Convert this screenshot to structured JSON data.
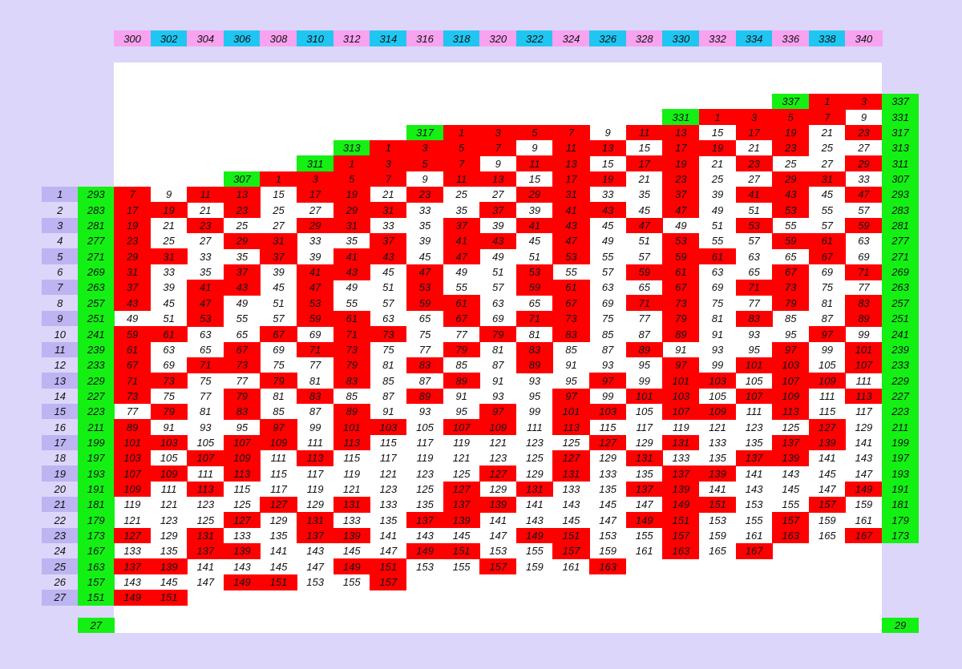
{
  "header": [
    300,
    302,
    304,
    306,
    308,
    310,
    312,
    314,
    316,
    318,
    320,
    322,
    324,
    326,
    328,
    330,
    332,
    334,
    336,
    338,
    340
  ],
  "header_colors": [
    "#f7a3ef",
    "#20c6f2"
  ],
  "label_colors": [
    "#bdb4f2",
    "#dcd6fb"
  ],
  "marker_color": "#14f014",
  "highlight_color": "#ff0000",
  "highlighted": [
    1,
    3,
    5,
    7,
    11,
    13,
    17,
    19,
    23,
    29,
    31,
    37,
    41,
    43,
    47,
    53,
    59,
    61,
    67,
    71,
    73,
    79,
    83,
    89,
    97,
    101,
    103,
    107,
    109,
    113,
    127,
    131,
    137,
    139,
    149,
    151,
    157,
    163,
    167
  ],
  "top_rows": [
    {
      "marker": 337,
      "cells": [
        null,
        null,
        null,
        null,
        null,
        null,
        null,
        null,
        null,
        null,
        null,
        null,
        null,
        null,
        null,
        null,
        null,
        null,
        null,
        1,
        3
      ],
      "right": 337
    },
    {
      "marker": 331,
      "cells": [
        null,
        null,
        null,
        null,
        null,
        null,
        null,
        null,
        null,
        null,
        null,
        null,
        null,
        null,
        null,
        null,
        1,
        3,
        5,
        7,
        9
      ],
      "right": 331
    },
    {
      "marker": 317,
      "cells": [
        null,
        null,
        null,
        null,
        null,
        null,
        null,
        null,
        null,
        1,
        3,
        5,
        7,
        9,
        11,
        13,
        15,
        17,
        19,
        21,
        23
      ],
      "right": 317
    },
    {
      "marker": 313,
      "cells": [
        null,
        null,
        null,
        null,
        null,
        null,
        null,
        1,
        3,
        5,
        7,
        9,
        11,
        13,
        15,
        17,
        19,
        21,
        23,
        25,
        27
      ],
      "right": 313
    },
    {
      "marker": 311,
      "cells": [
        null,
        null,
        null,
        null,
        null,
        null,
        1,
        3,
        5,
        7,
        9,
        11,
        13,
        15,
        17,
        19,
        21,
        23,
        25,
        27,
        29
      ],
      "right": 311
    },
    {
      "marker": 307,
      "cells": [
        null,
        null,
        null,
        null,
        1,
        3,
        5,
        7,
        9,
        11,
        13,
        15,
        17,
        19,
        21,
        23,
        25,
        27,
        29,
        31,
        33
      ],
      "right": 307
    }
  ],
  "rows": [
    {
      "label": 1,
      "left": 293,
      "cells": [
        7,
        9,
        11,
        13,
        15,
        17,
        19,
        21,
        23,
        25,
        27,
        29,
        31,
        33,
        35,
        37,
        39,
        41,
        43,
        45,
        47
      ],
      "right": 293
    },
    {
      "label": 2,
      "left": 283,
      "cells": [
        17,
        19,
        21,
        23,
        25,
        27,
        29,
        31,
        33,
        35,
        37,
        39,
        41,
        43,
        45,
        47,
        49,
        51,
        53,
        55,
        57
      ],
      "right": 283
    },
    {
      "label": 3,
      "left": 281,
      "cells": [
        19,
        21,
        23,
        25,
        27,
        29,
        31,
        33,
        35,
        37,
        39,
        41,
        43,
        45,
        47,
        49,
        51,
        53,
        55,
        57,
        59
      ],
      "right": 281
    },
    {
      "label": 4,
      "left": 277,
      "cells": [
        23,
        25,
        27,
        29,
        31,
        33,
        35,
        37,
        39,
        41,
        43,
        45,
        47,
        49,
        51,
        53,
        55,
        57,
        59,
        61,
        63
      ],
      "right": 277
    },
    {
      "label": 5,
      "left": 271,
      "cells": [
        29,
        31,
        33,
        35,
        37,
        39,
        41,
        43,
        45,
        47,
        49,
        51,
        53,
        55,
        57,
        59,
        61,
        63,
        65,
        67,
        69
      ],
      "right": 271
    },
    {
      "label": 6,
      "left": 269,
      "cells": [
        31,
        33,
        35,
        37,
        39,
        41,
        43,
        45,
        47,
        49,
        51,
        53,
        55,
        57,
        59,
        61,
        63,
        65,
        67,
        69,
        71
      ],
      "right": 269
    },
    {
      "label": 7,
      "left": 263,
      "cells": [
        37,
        39,
        41,
        43,
        45,
        47,
        49,
        51,
        53,
        55,
        57,
        59,
        61,
        63,
        65,
        67,
        69,
        71,
        73,
        75,
        77
      ],
      "right": 263
    },
    {
      "label": 8,
      "left": 257,
      "cells": [
        43,
        45,
        47,
        49,
        51,
        53,
        55,
        57,
        59,
        61,
        63,
        65,
        67,
        69,
        71,
        73,
        75,
        77,
        79,
        81,
        83
      ],
      "right": 257
    },
    {
      "label": 9,
      "left": 251,
      "cells": [
        49,
        51,
        53,
        55,
        57,
        59,
        61,
        63,
        65,
        67,
        69,
        71,
        73,
        75,
        77,
        79,
        81,
        83,
        85,
        87,
        89
      ],
      "right": 251
    },
    {
      "label": 10,
      "left": 241,
      "cells": [
        59,
        61,
        63,
        65,
        67,
        69,
        71,
        73,
        75,
        77,
        79,
        81,
        83,
        85,
        87,
        89,
        91,
        93,
        95,
        97,
        99
      ],
      "right": 241
    },
    {
      "label": 11,
      "left": 239,
      "cells": [
        61,
        63,
        65,
        67,
        69,
        71,
        73,
        75,
        77,
        79,
        81,
        83,
        85,
        87,
        89,
        91,
        93,
        95,
        97,
        99,
        101
      ],
      "right": 239
    },
    {
      "label": 12,
      "left": 233,
      "cells": [
        67,
        69,
        71,
        73,
        75,
        77,
        79,
        81,
        83,
        85,
        87,
        89,
        91,
        93,
        95,
        97,
        99,
        101,
        103,
        105,
        107
      ],
      "right": 233
    },
    {
      "label": 13,
      "left": 229,
      "cells": [
        71,
        73,
        75,
        77,
        79,
        81,
        83,
        85,
        87,
        89,
        91,
        93,
        95,
        97,
        99,
        101,
        103,
        105,
        107,
        109,
        111
      ],
      "right": 229
    },
    {
      "label": 14,
      "left": 227,
      "cells": [
        73,
        75,
        77,
        79,
        81,
        83,
        85,
        87,
        89,
        91,
        93,
        95,
        97,
        99,
        101,
        103,
        105,
        107,
        109,
        111,
        113
      ],
      "right": 227
    },
    {
      "label": 15,
      "left": 223,
      "cells": [
        77,
        79,
        81,
        83,
        85,
        87,
        89,
        91,
        93,
        95,
        97,
        99,
        101,
        103,
        105,
        107,
        109,
        111,
        113,
        115,
        117
      ],
      "right": 223
    },
    {
      "label": 16,
      "left": 211,
      "cells": [
        89,
        91,
        93,
        95,
        97,
        99,
        101,
        103,
        105,
        107,
        109,
        111,
        113,
        115,
        117,
        119,
        121,
        123,
        125,
        127,
        129
      ],
      "right": 211
    },
    {
      "label": 17,
      "left": 199,
      "cells": [
        101,
        103,
        105,
        107,
        109,
        111,
        113,
        115,
        117,
        119,
        121,
        123,
        125,
        127,
        129,
        131,
        133,
        135,
        137,
        139,
        141
      ],
      "right": 199
    },
    {
      "label": 18,
      "left": 197,
      "cells": [
        103,
        105,
        107,
        109,
        111,
        113,
        115,
        117,
        119,
        121,
        123,
        125,
        127,
        129,
        131,
        133,
        135,
        137,
        139,
        141,
        143
      ],
      "right": 197
    },
    {
      "label": 19,
      "left": 193,
      "cells": [
        107,
        109,
        111,
        113,
        115,
        117,
        119,
        121,
        123,
        125,
        127,
        129,
        131,
        133,
        135,
        137,
        139,
        141,
        143,
        145,
        147
      ],
      "right": 193
    },
    {
      "label": 20,
      "left": 191,
      "cells": [
        109,
        111,
        113,
        115,
        117,
        119,
        121,
        123,
        125,
        127,
        129,
        131,
        133,
        135,
        137,
        139,
        141,
        143,
        145,
        147,
        149
      ],
      "right": 191
    },
    {
      "label": 21,
      "left": 181,
      "cells": [
        119,
        121,
        123,
        125,
        127,
        129,
        131,
        133,
        135,
        137,
        139,
        141,
        143,
        145,
        147,
        149,
        151,
        153,
        155,
        157,
        159
      ],
      "right": 181
    },
    {
      "label": 22,
      "left": 179,
      "cells": [
        121,
        123,
        125,
        127,
        129,
        131,
        133,
        135,
        137,
        139,
        141,
        143,
        145,
        147,
        149,
        151,
        153,
        155,
        157,
        159,
        161
      ],
      "right": 179
    },
    {
      "label": 23,
      "left": 173,
      "cells": [
        127,
        129,
        131,
        133,
        135,
        137,
        139,
        141,
        143,
        145,
        147,
        149,
        151,
        153,
        155,
        157,
        159,
        161,
        163,
        165,
        167
      ],
      "right": 173
    },
    {
      "label": 24,
      "left": 167,
      "cells": [
        133,
        135,
        137,
        139,
        141,
        143,
        145,
        147,
        149,
        151,
        153,
        155,
        157,
        159,
        161,
        163,
        165,
        167
      ]
    },
    {
      "label": 25,
      "left": 163,
      "cells": [
        137,
        139,
        141,
        143,
        145,
        147,
        149,
        151,
        153,
        155,
        157,
        159,
        161,
        163
      ]
    },
    {
      "label": 26,
      "left": 157,
      "cells": [
        143,
        145,
        147,
        149,
        151,
        153,
        155,
        157
      ]
    },
    {
      "label": 27,
      "left": 151,
      "cells": [
        149,
        151
      ]
    }
  ],
  "footer": {
    "left": 27,
    "right": 29
  }
}
